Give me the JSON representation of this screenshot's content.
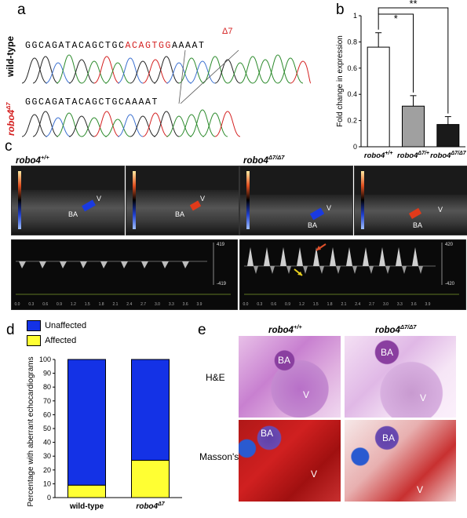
{
  "panel_a": {
    "letter": "a",
    "wt_label": "wild-type",
    "mut_label": "robo4",
    "mut_sup": "Δ7",
    "seq_wt_pre": "GGCAGATACAGCTGC",
    "seq_wt_del": "ACAGTGG",
    "seq_wt_post": "AAAAT",
    "seq_mut": "GGCAGATACAGCTGCAAAAT",
    "deletion_label": "Δ7"
  },
  "panel_b": {
    "letter": "b",
    "sig1": "*",
    "sig2": "**",
    "colors": {
      "wt": "#ffffff",
      "het": "#a0a0a0",
      "hom": "#1a1a1a"
    }
  },
  "chart_b": {
    "type": "bar",
    "ylabel": "Fold change in expression",
    "ylim": [
      0,
      1
    ],
    "yticks": [
      "0",
      "0.2",
      "0.4",
      "0.6",
      "0.8",
      "1"
    ],
    "categories": [
      {
        "base": "robo4",
        "sup": "+/+"
      },
      {
        "base": "robo4",
        "sup": "Δ7/+"
      },
      {
        "base": "robo4",
        "sup": "Δ7/Δ7"
      }
    ],
    "values": [
      0.76,
      0.31,
      0.17
    ],
    "errors": [
      0.11,
      0.08,
      0.06
    ]
  },
  "panel_c": {
    "letter": "c",
    "left_title": "robo4",
    "left_sup": "+/+",
    "right_title": "robo4",
    "right_sup": "Δ7/Δ7",
    "label_ba": "BA",
    "label_v": "V",
    "doppler_left_ticks": [
      "0.0",
      "0.3",
      "0.6",
      "0.9",
      "1.2",
      "1.5",
      "1.8",
      "2.1",
      "2.4",
      "2.7",
      "3.0",
      "3.3",
      "3.6",
      "3.9"
    ],
    "doppler_right_ticks": [
      "0.0",
      "0.3",
      "0.6",
      "0.9",
      "1.2",
      "1.5",
      "1.8",
      "2.1",
      "2.4",
      "2.7",
      "3.0",
      "3.3",
      "3.6",
      "3.9"
    ],
    "doppler_left_scale_top": "419",
    "doppler_left_scale_bottom": "-419",
    "doppler_right_scale_top": "420",
    "doppler_right_scale_bottom": "-420"
  },
  "panel_d": {
    "letter": "d",
    "legend_unaffected": "Unaffected",
    "legend_affected": "Affected",
    "colors": {
      "unaffected": "#1432e6",
      "affected": "#ffff33"
    }
  },
  "chart_d": {
    "type": "bar",
    "stacked": true,
    "ylabel": "Percentage with aberrant echocardiograms",
    "ylim": [
      0,
      100
    ],
    "yticks": [
      "0",
      "10",
      "20",
      "30",
      "40",
      "50",
      "60",
      "70",
      "80",
      "90",
      "100"
    ],
    "categories": [
      {
        "base": "wild-type",
        "sup": ""
      },
      {
        "base": "robo4",
        "sup": "Δ7"
      }
    ],
    "series": [
      {
        "name": "Affected",
        "values": [
          9,
          27
        ]
      },
      {
        "name": "Unaffected",
        "values": [
          91,
          73
        ]
      }
    ]
  },
  "panel_e": {
    "letter": "e",
    "left_title": "robo4",
    "left_sup": "+/+",
    "right_title": "robo4",
    "right_sup": "Δ7/Δ7",
    "row1": "H&E",
    "row2": "Masson's",
    "label_ba": "BA",
    "label_v": "V"
  }
}
